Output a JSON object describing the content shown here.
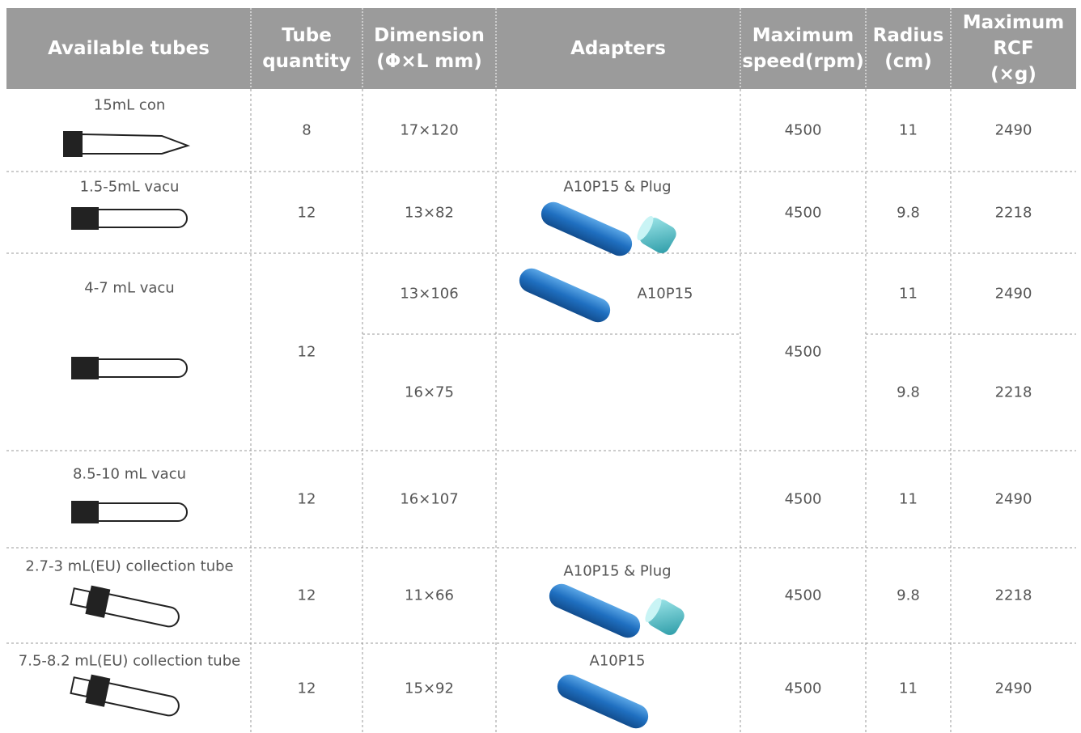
{
  "table": {
    "header": [
      [
        "Available tubes"
      ],
      [
        "Tube",
        "quantity"
      ],
      [
        "Dimension",
        "(Φ×L mm)"
      ],
      [
        "Adapters"
      ],
      [
        "Maximum",
        "speed(rpm)"
      ],
      [
        "Radius",
        "(cm)"
      ],
      [
        "Maximum",
        "RCF",
        "(×g)"
      ]
    ],
    "rows": [
      {
        "tube": "15mL con",
        "quantity": "8",
        "dimension": "17×120",
        "speed": "4500",
        "radius": "11",
        "rcf": "2490"
      },
      {
        "tube": "1.5-5mL vacu",
        "quantity": "12",
        "dimension": "13×82",
        "adapter": "A10P15 & Plug",
        "speed": "4500",
        "radius": "9.8",
        "rcf": "2218"
      },
      {
        "tube": "4-7 mL vacu",
        "quantity": "12",
        "speed": "4500",
        "sub": [
          {
            "dimension": "13×106",
            "adapter": "A10P15",
            "radius": "11",
            "rcf": "2490"
          },
          {
            "dimension": "16×75",
            "radius": "9.8",
            "rcf": "2218"
          }
        ]
      },
      {
        "tube": "8.5-10 mL vacu",
        "quantity": "12",
        "dimension": "16×107",
        "speed": "4500",
        "radius": "11",
        "rcf": "2490"
      },
      {
        "tube": "2.7-3 mL(EU) collection tube",
        "quantity": "12",
        "dimension": "11×66",
        "adapter": "A10P15 & Plug",
        "speed": "4500",
        "radius": "9.8",
        "rcf": "2218"
      },
      {
        "tube": "7.5-8.2 mL(EU) collection tube",
        "quantity": "12",
        "dimension": "15×92",
        "adapter": "A10P15",
        "speed": "4500",
        "radius": "11",
        "rcf": "2490"
      }
    ]
  }
}
